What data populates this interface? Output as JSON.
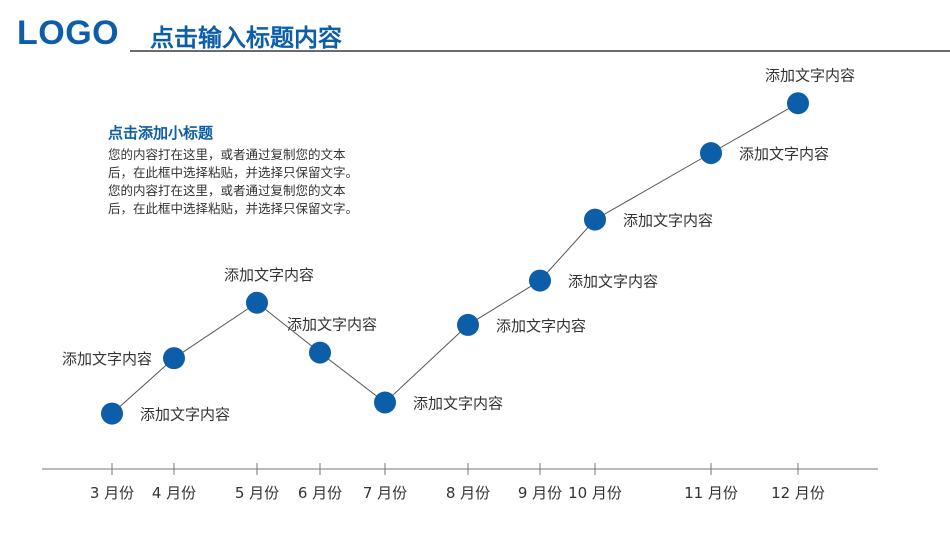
{
  "header": {
    "logo": "LOGO",
    "title": "点击输入标题内容"
  },
  "intro": {
    "subtitle": "点击添加小标题",
    "lines": [
      "您的内容打在这里，或者通过复制您的文本",
      "后，在此框中选择粘贴，并选择只保留文字。",
      "您的内容打在这里，或者通过复制您的文本",
      "后，在此框中选择粘贴，并选择只保留文字。"
    ]
  },
  "colors": {
    "accent": "#0c5ea8",
    "line": "#555555",
    "axis": "#777777",
    "text": "#333333"
  },
  "chart_data": {
    "type": "line",
    "categories": [
      "3 月份",
      "4 月份",
      "5 月份",
      "6 月份",
      "7 月份",
      "8 月份",
      "9 月份",
      "10 月份",
      "11 月份",
      "12 月份"
    ],
    "values": [
      1,
      2,
      3,
      2.1,
      1.2,
      2.6,
      3.4,
      4.5,
      5.7,
      6.6
    ],
    "point_labels": [
      "添加文字内容",
      "添加文字内容",
      "添加文字内容",
      "添加文字内容",
      "添加文字内容",
      "添加文字内容",
      "添加文字内容",
      "添加文字内容",
      "添加文字内容",
      "添加文字内容"
    ],
    "label_positions": [
      "right",
      "left",
      "above",
      "above",
      "right",
      "right",
      "right",
      "right",
      "right",
      "above"
    ],
    "ylim": [
      0,
      7.2
    ],
    "grid": false,
    "legend": "none"
  }
}
